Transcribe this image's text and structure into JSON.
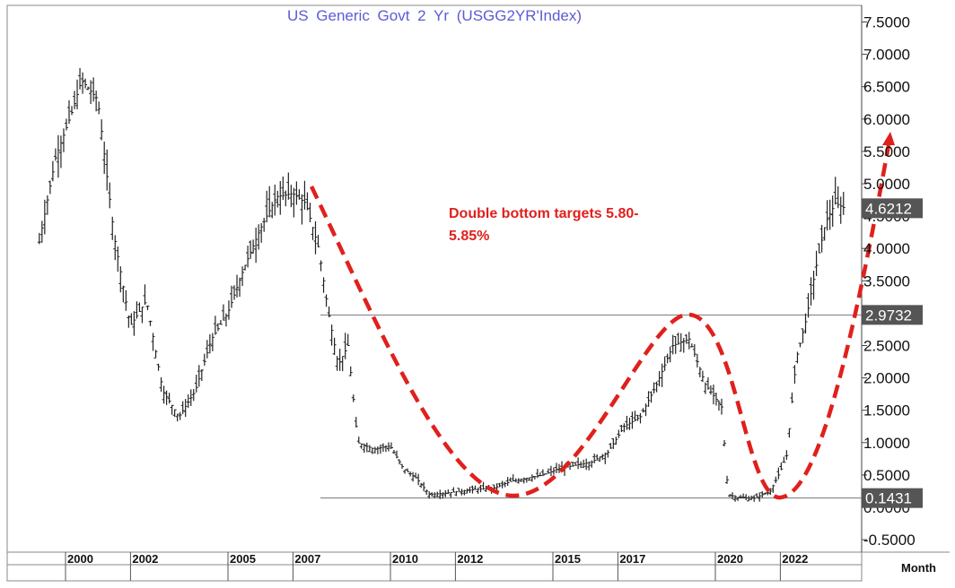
{
  "chart_data": {
    "type": "bar",
    "title": "US  Generic  Govt  2  Yr  (USGG2YR'Index)",
    "period_label": "Month",
    "ylim": [
      -0.75,
      7.75
    ],
    "y_ticks": [
      "7.5000",
      "7.0000",
      "6.5000",
      "6.0000",
      "5.5000",
      "5.0000",
      "4.5000",
      "4.0000",
      "3.5000",
      "3.0000",
      "2.5000",
      "2.0000",
      "1.5000",
      "1.0000",
      "0.5000",
      "0.0000",
      "-0.5000"
    ],
    "x_ticks": [
      "2000",
      "2002",
      "2005",
      "2007",
      "2010",
      "2012",
      "2015",
      "2017",
      "2020",
      "2022"
    ],
    "grid": false,
    "series": [
      {
        "x": [
          1999.0,
          1999.5,
          2000.0,
          2000.3,
          2000.8,
          2001.3,
          2001.8,
          2002.3,
          2002.8,
          2003.3,
          2003.8,
          2004.3,
          2004.8,
          2005.3,
          2005.8,
          2006.3,
          2006.8,
          2007.2,
          2007.6,
          2007.9,
          2008.2,
          2008.5,
          2008.8,
          2009.3,
          2009.8,
          2010.2,
          2010.6,
          2011.0,
          2011.5,
          2012.0,
          2012.5,
          2013.0,
          2013.5,
          2014.0,
          2014.5,
          2015.0,
          2015.5,
          2016.0,
          2016.5,
          2017.0,
          2017.5,
          2018.0,
          2018.5,
          2019.0,
          2019.5,
          2020.0,
          2020.2,
          2020.5,
          2021.0,
          2021.5,
          2021.8,
          2022.0,
          2022.3,
          2022.6,
          2022.9,
          2023.2,
          2023.5,
          2023.8
        ],
        "close": [
          4.1,
          5.4,
          6.1,
          6.6,
          6.3,
          4.2,
          2.8,
          3.2,
          1.8,
          1.4,
          1.8,
          2.6,
          3.0,
          3.7,
          4.3,
          4.8,
          4.85,
          4.7,
          4.0,
          3.0,
          2.2,
          2.5,
          1.0,
          0.9,
          0.95,
          0.6,
          0.45,
          0.2,
          0.22,
          0.25,
          0.28,
          0.3,
          0.4,
          0.45,
          0.5,
          0.6,
          0.65,
          0.7,
          0.85,
          1.25,
          1.4,
          1.9,
          2.5,
          2.6,
          1.9,
          1.55,
          0.2,
          0.15,
          0.14,
          0.25,
          0.55,
          0.8,
          2.3,
          2.9,
          3.7,
          4.4,
          4.7,
          4.62
        ]
      }
    ],
    "levels": [
      {
        "value": 2.9732,
        "label": "2.9732"
      },
      {
        "value": 0.1431,
        "label": "0.1431"
      }
    ],
    "last_value": {
      "value": 4.6212,
      "label": "4.6212"
    },
    "annotation": {
      "lines": [
        "Double bottom targets 5.80-",
        "5.85%"
      ]
    },
    "colors": {
      "bars": "#222222",
      "projection": "#e0201c",
      "title": "#5b5bd6",
      "badge": "#555555",
      "level_line": "#777777"
    }
  }
}
